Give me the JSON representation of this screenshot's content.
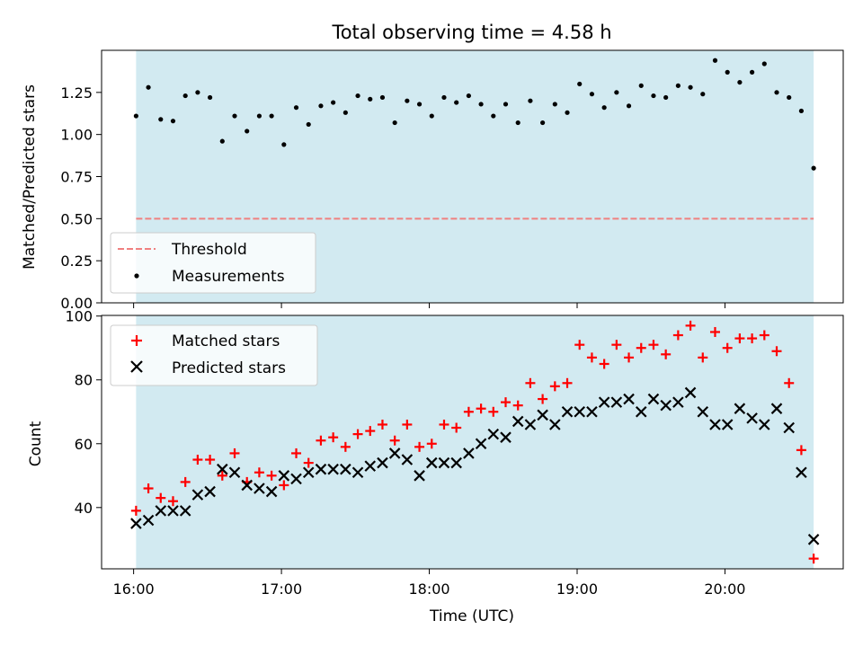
{
  "chart_data": [
    {
      "type": "scatter",
      "title": "Total observing time = 4.58 h",
      "xlabel": "",
      "ylabel": "Matched/Predicted stars",
      "ylim": [
        0,
        1.5
      ],
      "xlim": [
        "15:47",
        "20:48"
      ],
      "yticks": [
        0.0,
        0.25,
        0.5,
        0.75,
        1.0,
        1.25
      ],
      "ytick_labels": [
        "0.00",
        "0.25",
        "0.50",
        "0.75",
        "1.00",
        "1.25"
      ],
      "observing_window": [
        "16:01",
        "20:36"
      ],
      "window_color": "#add8e6",
      "threshold": 0.5,
      "legend_position": "lower-left",
      "series": [
        {
          "name": "Threshold",
          "kind": "dashed-line",
          "color": "#f08080",
          "values": [
            0.5,
            0.5
          ],
          "x": [
            "16:01",
            "20:36"
          ]
        },
        {
          "name": "Measurements",
          "kind": "dots",
          "color": "#000000",
          "x": [
            "16:01",
            "16:06",
            "16:11",
            "16:16",
            "16:21",
            "16:26",
            "16:31",
            "16:36",
            "16:41",
            "16:46",
            "16:51",
            "16:56",
            "17:01",
            "17:06",
            "17:11",
            "17:16",
            "17:21",
            "17:26",
            "17:31",
            "17:36",
            "17:41",
            "17:46",
            "17:51",
            "17:56",
            "18:01",
            "18:06",
            "18:11",
            "18:16",
            "18:21",
            "18:26",
            "18:31",
            "18:36",
            "18:41",
            "18:46",
            "18:51",
            "18:56",
            "19:01",
            "19:06",
            "19:11",
            "19:16",
            "19:21",
            "19:26",
            "19:31",
            "19:36",
            "19:41",
            "19:46",
            "19:51",
            "19:56",
            "20:01",
            "20:06",
            "20:11",
            "20:16",
            "20:21",
            "20:26",
            "20:31",
            "20:36"
          ],
          "values": [
            1.11,
            1.28,
            1.09,
            1.08,
            1.23,
            1.25,
            1.22,
            0.96,
            1.11,
            1.02,
            1.11,
            1.11,
            0.94,
            1.16,
            1.06,
            1.17,
            1.19,
            1.13,
            1.23,
            1.21,
            1.22,
            1.07,
            1.2,
            1.18,
            1.11,
            1.22,
            1.19,
            1.23,
            1.18,
            1.11,
            1.18,
            1.07,
            1.2,
            1.07,
            1.18,
            1.13,
            1.3,
            1.24,
            1.16,
            1.25,
            1.17,
            1.29,
            1.23,
            1.22,
            1.29,
            1.28,
            1.24,
            1.44,
            1.37,
            1.31,
            1.37,
            1.42,
            1.25,
            1.22,
            1.14,
            0.8
          ]
        }
      ]
    },
    {
      "type": "scatter",
      "title": "",
      "xlabel": "Time (UTC)",
      "ylabel": "Count",
      "ylim": [
        20.8,
        100.2
      ],
      "xlim": [
        "15:47",
        "20:48"
      ],
      "yticks": [
        40,
        60,
        80,
        100
      ],
      "xticks": [
        "16:00",
        "17:00",
        "18:00",
        "19:00",
        "20:00"
      ],
      "observing_window": [
        "16:01",
        "20:36"
      ],
      "window_color": "#add8e6",
      "legend_position": "upper-left",
      "x": [
        "16:01",
        "16:06",
        "16:11",
        "16:16",
        "16:21",
        "16:26",
        "16:31",
        "16:36",
        "16:41",
        "16:46",
        "16:51",
        "16:56",
        "17:01",
        "17:06",
        "17:11",
        "17:16",
        "17:21",
        "17:26",
        "17:31",
        "17:36",
        "17:41",
        "17:46",
        "17:51",
        "17:56",
        "18:01",
        "18:06",
        "18:11",
        "18:16",
        "18:21",
        "18:26",
        "18:31",
        "18:36",
        "18:41",
        "18:46",
        "18:51",
        "18:56",
        "19:01",
        "19:06",
        "19:11",
        "19:16",
        "19:21",
        "19:26",
        "19:31",
        "19:36",
        "19:41",
        "19:46",
        "19:51",
        "19:56",
        "20:01",
        "20:06",
        "20:11",
        "20:16",
        "20:21",
        "20:26",
        "20:31",
        "20:36"
      ],
      "series": [
        {
          "name": "Matched stars",
          "marker": "plus",
          "color": "#ff0000",
          "values": [
            39,
            46,
            43,
            42,
            48,
            55,
            55,
            50,
            57,
            48,
            51,
            50,
            47,
            57,
            54,
            61,
            62,
            59,
            63,
            64,
            66,
            61,
            66,
            59,
            60,
            66,
            65,
            70,
            71,
            70,
            73,
            72,
            79,
            74,
            78,
            79,
            91,
            87,
            85,
            91,
            87,
            90,
            91,
            88,
            94,
            97,
            87,
            95,
            90,
            93,
            93,
            94,
            89,
            79,
            58,
            24
          ]
        },
        {
          "name": "Predicted stars",
          "marker": "x",
          "color": "#000000",
          "values": [
            35,
            36,
            39,
            39,
            39,
            44,
            45,
            52,
            51,
            47,
            46,
            45,
            50,
            49,
            51,
            52,
            52,
            52,
            51,
            53,
            54,
            57,
            55,
            50,
            54,
            54,
            54,
            57,
            60,
            63,
            62,
            67,
            66,
            69,
            66,
            70,
            70,
            70,
            73,
            73,
            74,
            70,
            74,
            72,
            73,
            76,
            70,
            66,
            66,
            71,
            68,
            66,
            71,
            65,
            51,
            30
          ]
        }
      ]
    }
  ]
}
